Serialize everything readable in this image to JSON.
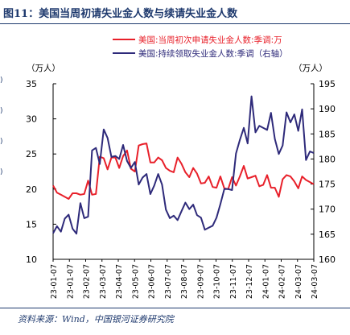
{
  "title": "图11：美国当周初请失业金人数与续请失业金人数",
  "source": "资料来源：Wind，中国银河证券研究院",
  "colors": {
    "primary": "#1f3a6e",
    "series_initial": "#e8202a",
    "series_continuing": "#2e2a7a"
  },
  "chart_data": {
    "type": "line",
    "left_axis": {
      "label": "（万人）",
      "ylim": [
        10,
        35
      ],
      "ticks": [
        10,
        15,
        20,
        25,
        30,
        35
      ]
    },
    "right_axis": {
      "label": "（万人）",
      "ylim": [
        160,
        195
      ],
      "ticks": [
        160,
        165,
        170,
        175,
        180,
        185,
        190,
        195
      ]
    },
    "x_tick_labels": [
      "23-01-07",
      "23-01-07",
      "23-02-07",
      "23-03-07",
      "23-04-07",
      "23-05-07",
      "23-06-07",
      "23-07-07",
      "23-08-07",
      "23-09-07",
      "23-10-07",
      "23-11-07",
      "23-12-07",
      "24-01-07",
      "24-02-07",
      "24-03-07",
      "24-03-07"
    ],
    "legend": {
      "placement": "top-center"
    },
    "series": [
      {
        "name": "美国:当周初次申请失业金人数:季调:万",
        "axis": "left",
        "values": [
          20.5,
          19.5,
          19.2,
          18.9,
          18.6,
          19.4,
          19.4,
          19.2,
          19.3,
          21.2,
          19.2,
          19.3,
          24.6,
          24.4,
          22.8,
          24.5,
          24.5,
          23.0,
          24.7,
          25.5,
          22.9,
          22.5,
          26.2,
          26.4,
          26.5,
          23.8,
          23.8,
          24.5,
          24.1,
          23.0,
          22.6,
          22.4,
          24.5,
          23.6,
          22.4,
          21.7,
          23.0,
          22.2,
          20.8,
          20.9,
          21.8,
          20.3,
          20.2,
          21.8,
          20.1,
          20.0,
          21.7,
          20.5,
          21.8,
          23.3,
          21.5,
          21.7,
          21.9,
          20.4,
          20.6,
          22.0,
          20.2,
          20.2,
          18.9,
          21.4,
          22.0,
          21.8,
          21.1,
          20.1,
          21.8,
          21.3,
          21.0,
          20.7
        ]
      },
      {
        "name": "美国:持续领取失业金人数:季调（右轴）",
        "axis": "right",
        "values": [
          165.2,
          166.6,
          165.5,
          168.1,
          168.9,
          166.1,
          165.1,
          171.2,
          168.2,
          168.5,
          181.7,
          182.2,
          179.0,
          185.9,
          184.2,
          180.4,
          180.6,
          180.0,
          182.8,
          179.6,
          178.2,
          179.4,
          174.9,
          176.3,
          177.0,
          173.0,
          174.7,
          177.0,
          174.9,
          169.9,
          168.2,
          168.7,
          167.8,
          169.6,
          171.3,
          170.0,
          170.9,
          168.8,
          168.3,
          165.9,
          166.3,
          166.7,
          168.3,
          171.0,
          174.0,
          174.0,
          173.8,
          181.1,
          183.8,
          186.2,
          183.1,
          192.5,
          185.3,
          186.6,
          186.2,
          185.8,
          189.2,
          184.0,
          181.0,
          182.7,
          189.3,
          187.3,
          188.9,
          185.6,
          189.9,
          179.8,
          181.5,
          181.2
        ]
      }
    ]
  }
}
